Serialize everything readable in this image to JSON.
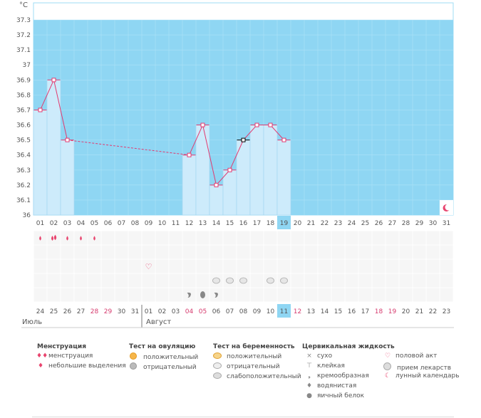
{
  "chart_data": {
    "type": "bar",
    "ylabel": "°C",
    "ylim": [
      36,
      37.4
    ],
    "yticks": [
      "36",
      "36.1",
      "36.2",
      "36.3",
      "36.4",
      "36.5",
      "36.6",
      "36.7",
      "36.8",
      "36.9",
      "37",
      "37.1",
      "37.2",
      "37.3"
    ],
    "days": [
      "01",
      "02",
      "03",
      "04",
      "05",
      "06",
      "07",
      "08",
      "09",
      "10",
      "11",
      "12",
      "13",
      "14",
      "15",
      "16",
      "17",
      "18",
      "19",
      "20",
      "21",
      "22",
      "23",
      "24",
      "25",
      "26",
      "27",
      "28",
      "29",
      "30",
      "31"
    ],
    "calendar": [
      {
        "d": "24",
        "red": false
      },
      {
        "d": "25",
        "red": false
      },
      {
        "d": "26",
        "red": false
      },
      {
        "d": "27",
        "red": false
      },
      {
        "d": "28",
        "red": true
      },
      {
        "d": "29",
        "red": true
      },
      {
        "d": "30",
        "red": false
      },
      {
        "d": "31",
        "red": false
      },
      {
        "d": "01",
        "red": false
      },
      {
        "d": "02",
        "red": false
      },
      {
        "d": "03",
        "red": false
      },
      {
        "d": "04",
        "red": true
      },
      {
        "d": "05",
        "red": true
      },
      {
        "d": "06",
        "red": false
      },
      {
        "d": "07",
        "red": false
      },
      {
        "d": "08",
        "red": false
      },
      {
        "d": "09",
        "red": false
      },
      {
        "d": "10",
        "red": false
      },
      {
        "d": "11",
        "red": false
      },
      {
        "d": "12",
        "red": true
      },
      {
        "d": "13",
        "red": false
      },
      {
        "d": "14",
        "red": false
      },
      {
        "d": "15",
        "red": false
      },
      {
        "d": "16",
        "red": false
      },
      {
        "d": "17",
        "red": false
      },
      {
        "d": "18",
        "red": true
      },
      {
        "d": "19",
        "red": true
      },
      {
        "d": "20",
        "red": false
      },
      {
        "d": "21",
        "red": false
      },
      {
        "d": "22",
        "red": false
      },
      {
        "d": "23",
        "red": false
      }
    ],
    "current_day_index": 18,
    "temps": [
      {
        "day": 1,
        "t": 36.7
      },
      {
        "day": 2,
        "t": 36.9
      },
      {
        "day": 3,
        "t": 36.5
      },
      {
        "day": 12,
        "t": 36.4
      },
      {
        "day": 13,
        "t": 36.6
      },
      {
        "day": 14,
        "t": 36.2
      },
      {
        "day": 15,
        "t": 36.3
      },
      {
        "day": 16,
        "t": 36.5
      },
      {
        "day": 17,
        "t": 36.6
      },
      {
        "day": 18,
        "t": 36.6
      },
      {
        "day": 19,
        "t": 36.5
      }
    ],
    "gap": {
      "from_day": 3,
      "to_day": 12
    },
    "marker_day": 16,
    "menstruation": [
      {
        "day": 1,
        "type": "small"
      },
      {
        "day": 2,
        "type": "heavy"
      },
      {
        "day": 3,
        "type": "small"
      },
      {
        "day": 4,
        "type": "small"
      },
      {
        "day": 5,
        "type": "small"
      }
    ],
    "intercourse_days": [
      9
    ],
    "pregnancy_neg_days": [
      14,
      15,
      16,
      18,
      19
    ],
    "mucus": [
      {
        "day": 12,
        "type": "creamy"
      },
      {
        "day": 13,
        "type": "watery"
      },
      {
        "day": 14,
        "type": "creamy"
      }
    ],
    "moon_day": 31,
    "months": {
      "first": "Июль",
      "second": "Август"
    },
    "colors": {
      "zone": "#8fd6f3",
      "bar": "#cdebfb",
      "line": "#e23a70",
      "red_day": "#d63b6e"
    }
  },
  "legend": {
    "menstruation": {
      "title": "Менструация",
      "items": [
        "менструация",
        "небольшие выделения"
      ]
    },
    "ovulation": {
      "title": "Тест на овуляцию",
      "items": [
        "положительный",
        "отрицательный"
      ]
    },
    "pregnancy": {
      "title": "Тест на беременность",
      "items": [
        "положительный",
        "отрицательный",
        "слабоположительный"
      ]
    },
    "mucus": {
      "title": "Цервикальная жидкость",
      "items": [
        "сухо",
        "клейкая",
        "кремообразная",
        "водянистая",
        "яичный белок"
      ]
    },
    "other": {
      "items": [
        "половой акт",
        "прием лекарств",
        "лунный календарь"
      ]
    }
  }
}
